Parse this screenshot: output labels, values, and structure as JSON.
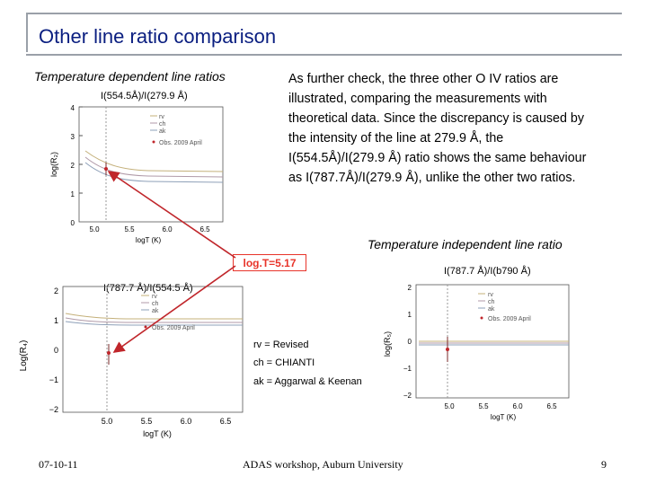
{
  "slide": {
    "title": "Other line ratio comparison",
    "section_dependent": "Temperature dependent line ratios",
    "section_independent": "Temperature independent line ratio",
    "plot1_label": "I(554.5Å)/I(279.9 Å)",
    "plot2_label": "I(787.7 Å)/I(554.5 Å)",
    "plot3_label": "I(787.7 Å)/I(b790 Å)",
    "paragraph": "As further check, the three other O IV ratios are illustrated, comparing the measurements with theoretical data. Since the discrepancy is caused by the intensity of the line at 279.9 Å, the I(554.5Å)/I(279.9 Å) ratio shows the same behaviour as I(787.7Å)/I(279.9 Å), unlike the other two ratios.",
    "logt_box": "log.T=5.17",
    "note_rv": "rv = Revised",
    "note_ch": "ch = CHIANTI",
    "note_ak": "ak = Aggarwal & Keenan",
    "footer_date": "07-10-11",
    "footer_center": "ADAS workshop, Auburn University",
    "footer_page": "9"
  },
  "plots": {
    "p1": {
      "ylabel": "log(R₂)",
      "xlabel": "logT (K)",
      "yticks": [
        "4",
        "3",
        "2",
        "1",
        "0"
      ],
      "xticks": [
        "5.0",
        "5.5",
        "6.0",
        "6.5"
      ],
      "legend": [
        "rv",
        "ch",
        "ak",
        "Obs. 2009 April"
      ]
    },
    "p2": {
      "ylabel": "Log(R₄)",
      "xlabel": "logT (K)",
      "yticks": [
        "2",
        "1",
        "0",
        "−1",
        "−2"
      ],
      "xticks": [
        "5.0",
        "5.5",
        "6.0",
        "6.5"
      ],
      "legend": [
        "rv",
        "ch",
        "ak",
        "Obs. 2009 April"
      ]
    },
    "p3": {
      "ylabel": "log(R₅)",
      "xlabel": "logT (K)",
      "yticks": [
        "2",
        "1",
        "0",
        "−1",
        "−2"
      ],
      "xticks": [
        "5.0",
        "5.5",
        "6.0",
        "6.5"
      ],
      "legend": [
        "rv",
        "ch",
        "ak",
        "Obs. 2009 April"
      ]
    }
  }
}
